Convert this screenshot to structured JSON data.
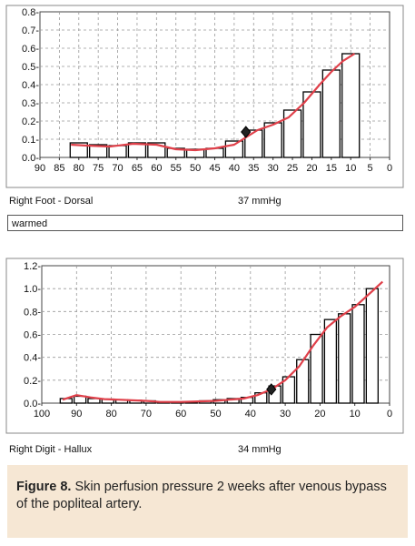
{
  "chart_data": [
    {
      "type": "bar",
      "x_axis_reversed": true,
      "xlim": [
        90,
        0
      ],
      "ylim": [
        0,
        0.8
      ],
      "xticks": [
        "90",
        "85",
        "80",
        "75",
        "70",
        "65",
        "60",
        "55",
        "50",
        "45",
        "40",
        "35",
        "30",
        "25",
        "20",
        "15",
        "10",
        "5",
        "0"
      ],
      "yticks": [
        "0.0-",
        "0.1-",
        "0.2-",
        "0.3-",
        "0.4-",
        "0.5-",
        "0.6-",
        "0.7-",
        "0.8-"
      ],
      "grid": true,
      "bars": [
        {
          "x": 80,
          "value": 0.08
        },
        {
          "x": 75,
          "value": 0.07
        },
        {
          "x": 70,
          "value": 0.065
        },
        {
          "x": 65,
          "value": 0.08
        },
        {
          "x": 60,
          "value": 0.08
        },
        {
          "x": 55,
          "value": 0.05
        },
        {
          "x": 50,
          "value": 0.045
        },
        {
          "x": 45,
          "value": 0.05
        },
        {
          "x": 40,
          "value": 0.09
        },
        {
          "x": 35,
          "value": 0.15
        },
        {
          "x": 30,
          "value": 0.19
        },
        {
          "x": 25,
          "value": 0.26
        },
        {
          "x": 20,
          "value": 0.36
        },
        {
          "x": 15,
          "value": 0.48
        },
        {
          "x": 10,
          "value": 0.57
        }
      ],
      "curve": [
        [
          82,
          0.07
        ],
        [
          78,
          0.065
        ],
        [
          72,
          0.06
        ],
        [
          66,
          0.075
        ],
        [
          60,
          0.07
        ],
        [
          55,
          0.045
        ],
        [
          50,
          0.04
        ],
        [
          45,
          0.05
        ],
        [
          40,
          0.07
        ],
        [
          37,
          0.11
        ],
        [
          34,
          0.15
        ],
        [
          30,
          0.18
        ],
        [
          26,
          0.22
        ],
        [
          22,
          0.3
        ],
        [
          18,
          0.4
        ],
        [
          15,
          0.47
        ],
        [
          12,
          0.53
        ],
        [
          9,
          0.57
        ]
      ],
      "marker": {
        "x": 37,
        "value": 0.14
      },
      "curve_color": "#e0404a"
    },
    {
      "type": "bar",
      "x_axis_reversed": true,
      "xlim": [
        100,
        0
      ],
      "ylim": [
        0,
        1.2
      ],
      "xticks": [
        "100",
        "90",
        "80",
        "70",
        "60",
        "50",
        "40",
        "30",
        "20",
        "10",
        "0"
      ],
      "yticks": [
        "0.0-",
        "0.2-",
        "0.4-",
        "0.6-",
        "0.8-",
        "1.0-",
        "1.2-"
      ],
      "grid": true,
      "bars": [
        {
          "x": 93,
          "value": 0.04
        },
        {
          "x": 89,
          "value": 0.06
        },
        {
          "x": 85,
          "value": 0.04
        },
        {
          "x": 81,
          "value": 0.035
        },
        {
          "x": 77,
          "value": 0.03
        },
        {
          "x": 73,
          "value": 0.025
        },
        {
          "x": 69,
          "value": 0.02
        },
        {
          "x": 65,
          "value": 0.01
        },
        {
          "x": 61,
          "value": 0.01
        },
        {
          "x": 57,
          "value": 0.01
        },
        {
          "x": 53,
          "value": 0.02
        },
        {
          "x": 49,
          "value": 0.03
        },
        {
          "x": 45,
          "value": 0.04
        },
        {
          "x": 41,
          "value": 0.05
        },
        {
          "x": 37,
          "value": 0.09
        },
        {
          "x": 33,
          "value": 0.15
        },
        {
          "x": 29,
          "value": 0.23
        },
        {
          "x": 25,
          "value": 0.38
        },
        {
          "x": 21,
          "value": 0.6
        },
        {
          "x": 17,
          "value": 0.73
        },
        {
          "x": 13,
          "value": 0.78
        },
        {
          "x": 9,
          "value": 0.86
        },
        {
          "x": 5,
          "value": 1.0
        }
      ],
      "curve": [
        [
          94,
          0.03
        ],
        [
          90,
          0.07
        ],
        [
          86,
          0.05
        ],
        [
          82,
          0.035
        ],
        [
          78,
          0.03
        ],
        [
          74,
          0.025
        ],
        [
          70,
          0.02
        ],
        [
          66,
          0.01
        ],
        [
          60,
          0.01
        ],
        [
          55,
          0.015
        ],
        [
          50,
          0.02
        ],
        [
          46,
          0.03
        ],
        [
          42,
          0.04
        ],
        [
          38,
          0.07
        ],
        [
          34,
          0.12
        ],
        [
          30,
          0.2
        ],
        [
          26,
          0.32
        ],
        [
          22,
          0.5
        ],
        [
          18,
          0.66
        ],
        [
          14,
          0.76
        ],
        [
          10,
          0.84
        ],
        [
          6,
          0.95
        ],
        [
          2,
          1.06
        ]
      ],
      "marker": {
        "x": 34,
        "value": 0.12
      },
      "curve_color": "#e0404a"
    }
  ],
  "labels": {
    "top_site": "Right Foot - Dorsal",
    "top_pressure": "37 mmHg",
    "top_note": "warmed",
    "bottom_site": "Right Digit - Hallux",
    "bottom_pressure": "34 mmHg"
  },
  "caption": {
    "label": "Figure 8.",
    "text": " Skin perfusion pressure 2 weeks after venous bypass of the popliteal artery."
  },
  "colors": {
    "caption_bg": "#f6e7d4",
    "plot_border": "#444444",
    "grid": "#999999"
  }
}
